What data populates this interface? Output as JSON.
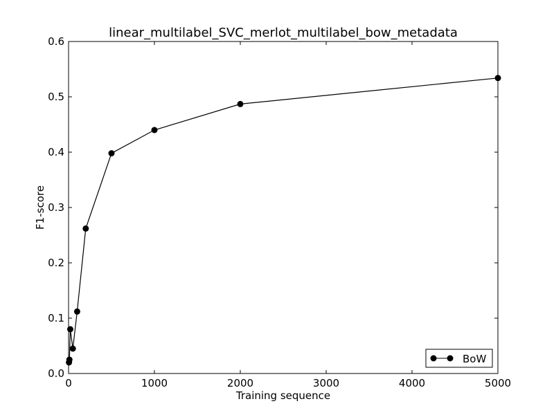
{
  "chart_data": {
    "type": "line",
    "title": "linear_multilabel_SVC_merlot_multilabel_bow_metadata",
    "xlabel": "Training sequence",
    "ylabel": "F1-score",
    "xlim": [
      0,
      5000
    ],
    "ylim": [
      0.0,
      0.6
    ],
    "xticks": [
      0,
      1000,
      2000,
      3000,
      4000,
      5000
    ],
    "xtick_labels": [
      "0",
      "1000",
      "2000",
      "3000",
      "4000",
      "5000"
    ],
    "yticks": [
      0.0,
      0.1,
      0.2,
      0.3,
      0.4,
      0.5,
      0.6
    ],
    "ytick_labels": [
      "0.0",
      "0.1",
      "0.2",
      "0.3",
      "0.4",
      "0.5",
      "0.6"
    ],
    "grid": false,
    "legend_position": "bottom-right",
    "series": [
      {
        "name": "BoW",
        "color": "#000000",
        "marker": "circle",
        "x": [
          5,
          10,
          20,
          50,
          100,
          200,
          500,
          1000,
          2000,
          5000
        ],
        "y": [
          0.02,
          0.025,
          0.08,
          0.045,
          0.112,
          0.262,
          0.398,
          0.44,
          0.487,
          0.534
        ]
      }
    ]
  }
}
